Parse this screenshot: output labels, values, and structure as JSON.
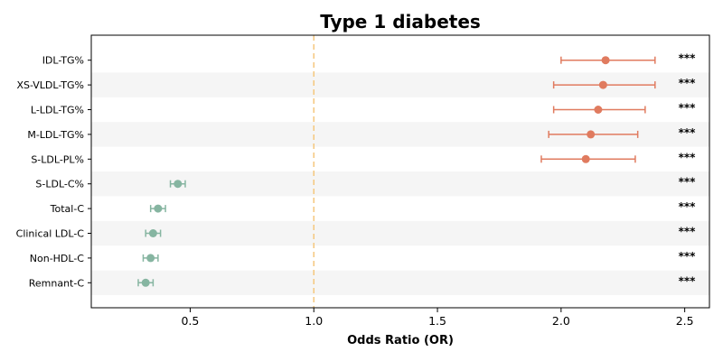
{
  "chart_data": {
    "type": "scatter",
    "title": "Type 1 diabetes",
    "xlabel": "Odds Ratio (OR)",
    "ylabel": "",
    "xlim": [
      0.1,
      2.6
    ],
    "xticks": [
      0.5,
      1.0,
      1.5,
      2.0,
      2.5
    ],
    "xtick_labels": [
      "0.5",
      "1.0",
      "1.5",
      "2.0",
      "2.5"
    ],
    "reference_line": 1.0,
    "reference_color": "#f5c77e",
    "grid": false,
    "alternating_row_shading": true,
    "colors": {
      "increased": "#e07b5f",
      "decreased": "#86b5a1",
      "stripe": "#f5f5f5"
    },
    "points": [
      {
        "label": "IDL-TG%",
        "or": 2.18,
        "ci_low": 2.0,
        "ci_high": 2.38,
        "sig": "***",
        "group": "increased"
      },
      {
        "label": "XS-VLDL-TG%",
        "or": 2.17,
        "ci_low": 1.97,
        "ci_high": 2.38,
        "sig": "***",
        "group": "increased"
      },
      {
        "label": "L-LDL-TG%",
        "or": 2.15,
        "ci_low": 1.97,
        "ci_high": 2.34,
        "sig": "***",
        "group": "increased"
      },
      {
        "label": "M-LDL-TG%",
        "or": 2.12,
        "ci_low": 1.95,
        "ci_high": 2.31,
        "sig": "***",
        "group": "increased"
      },
      {
        "label": "S-LDL-PL%",
        "or": 2.1,
        "ci_low": 1.92,
        "ci_high": 2.3,
        "sig": "***",
        "group": "increased"
      },
      {
        "label": "S-LDL-C%",
        "or": 0.45,
        "ci_low": 0.42,
        "ci_high": 0.48,
        "sig": "***",
        "group": "decreased"
      },
      {
        "label": "Total-C",
        "or": 0.37,
        "ci_low": 0.34,
        "ci_high": 0.4,
        "sig": "***",
        "group": "decreased"
      },
      {
        "label": "Clinical LDL-C",
        "or": 0.35,
        "ci_low": 0.32,
        "ci_high": 0.38,
        "sig": "***",
        "group": "decreased"
      },
      {
        "label": "Non-HDL-C",
        "or": 0.34,
        "ci_low": 0.31,
        "ci_high": 0.37,
        "sig": "***",
        "group": "decreased"
      },
      {
        "label": "Remnant-C",
        "or": 0.32,
        "ci_low": 0.29,
        "ci_high": 0.35,
        "sig": "***",
        "group": "decreased"
      }
    ]
  }
}
